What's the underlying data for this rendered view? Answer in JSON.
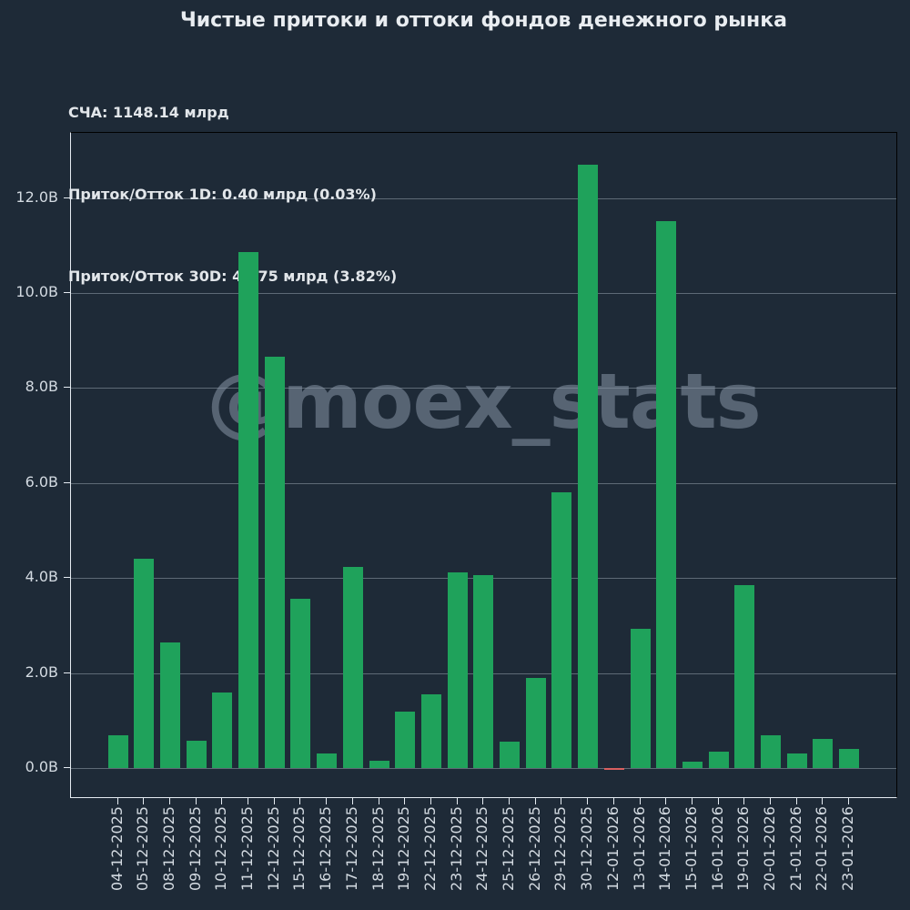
{
  "title": "Чистые притоки и оттоки фондов денежного рынка",
  "stats": {
    "nav": "СЧА: 1148.14 млрд",
    "flow_1d": "Приток/Отток 1D: 0.40 млрд (0.03%)",
    "flow_30d": "Приток/Отток 30D: 41.75 млрд (3.82%)"
  },
  "watermark": "@moex_stats",
  "chart_data": {
    "type": "bar",
    "title": "Чистые притоки и оттоки фондов денежного рынка",
    "categories": [
      "04-12-2025",
      "05-12-2025",
      "08-12-2025",
      "09-12-2025",
      "10-12-2025",
      "11-12-2025",
      "12-12-2025",
      "15-12-2025",
      "16-12-2025",
      "17-12-2025",
      "18-12-2025",
      "19-12-2025",
      "22-12-2025",
      "23-12-2025",
      "24-12-2025",
      "25-12-2025",
      "26-12-2025",
      "29-12-2025",
      "30-12-2025",
      "12-01-2026",
      "13-01-2026",
      "14-01-2026",
      "15-01-2026",
      "16-01-2026",
      "19-01-2026",
      "20-01-2026",
      "21-01-2026",
      "22-01-2026",
      "23-01-2026"
    ],
    "values": [
      0.7,
      4.4,
      2.64,
      0.58,
      1.59,
      10.87,
      8.66,
      3.56,
      0.3,
      4.24,
      0.15,
      1.19,
      1.56,
      4.12,
      4.07,
      0.55,
      1.9,
      5.8,
      12.71,
      -0.04,
      2.93,
      11.52,
      0.13,
      0.35,
      3.85,
      0.7,
      0.31,
      0.61,
      0.41
    ],
    "units": "B",
    "xlabel": "",
    "ylabel": "",
    "yticks": [
      0,
      2,
      4,
      6,
      8,
      10,
      12
    ],
    "ytick_labels": [
      "0.0B",
      "2.0B",
      "4.0B",
      "6.0B",
      "8.0B",
      "10.0B",
      "12.0B"
    ],
    "ylim": [
      -0.65,
      13.37
    ],
    "grid": true,
    "legend": "none",
    "colors": {
      "positive_bar": "#1fa25b",
      "negative_bar": "#d95f5f",
      "background": "#1e2a37",
      "gridline": "rgba(200,210,222,0.38)",
      "text": "#d3dae1"
    }
  }
}
